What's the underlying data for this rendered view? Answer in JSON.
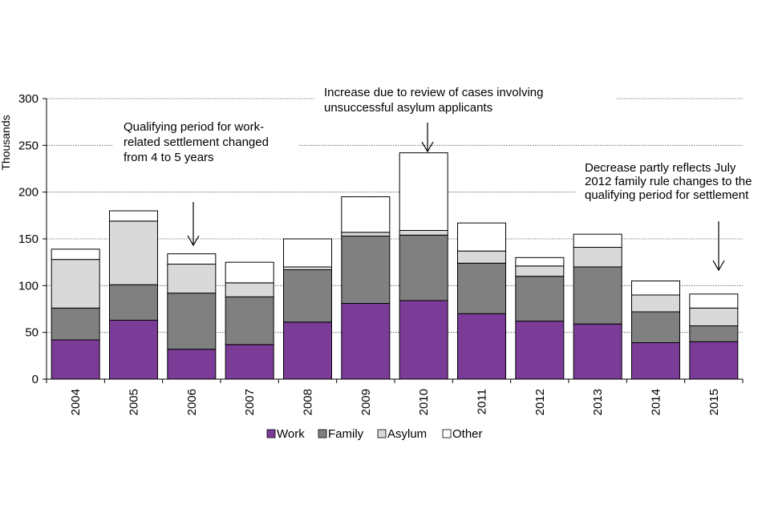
{
  "chart_data": {
    "type": "bar",
    "stacked": true,
    "title": "",
    "xlabel": "",
    "ylabel": "Thousands",
    "ylim": [
      0,
      300
    ],
    "yticks": [
      "0",
      "50",
      "100",
      "150",
      "200",
      "250",
      "300"
    ],
    "ytick_values": [
      0,
      50,
      100,
      150,
      200,
      250,
      300
    ],
    "grid": "horizontal-dotted",
    "legend_position": "bottom",
    "categories": [
      "2004",
      "2005",
      "2006",
      "2007",
      "2008",
      "2009",
      "2010",
      "2011",
      "2012",
      "2013",
      "2014",
      "2015"
    ],
    "series": [
      {
        "name": "Work",
        "color": "#7b3c97",
        "values": [
          42,
          63,
          32,
          37,
          61,
          81,
          84,
          70,
          62,
          59,
          39,
          40
        ]
      },
      {
        "name": "Family",
        "color": "#808080",
        "values": [
          34,
          38,
          60,
          51,
          56,
          72,
          70,
          54,
          48,
          61,
          33,
          17
        ]
      },
      {
        "name": "Asylum",
        "color": "#d9d9d9",
        "values": [
          52,
          68,
          31,
          15,
          3,
          4,
          5,
          13,
          11,
          21,
          18,
          19
        ]
      },
      {
        "name": "Other",
        "color": "#ffffff",
        "values": [
          11,
          11,
          11,
          22,
          30,
          38,
          83,
          30,
          9,
          14,
          15,
          15
        ]
      }
    ],
    "annotations": [
      {
        "category": "2006",
        "lines": [
          "Qualifying period for work-",
          "related settlement changed",
          "from 4 to 5 years"
        ]
      },
      {
        "category": "2010",
        "lines": [
          "Increase due to review  of cases involving",
          "unsuccessful asylum applicants"
        ]
      },
      {
        "category": "2015",
        "lines": [
          "Decrease partly reflects July",
          "2012 family rule changes to the",
          "qualifying period for settlement"
        ]
      }
    ]
  }
}
